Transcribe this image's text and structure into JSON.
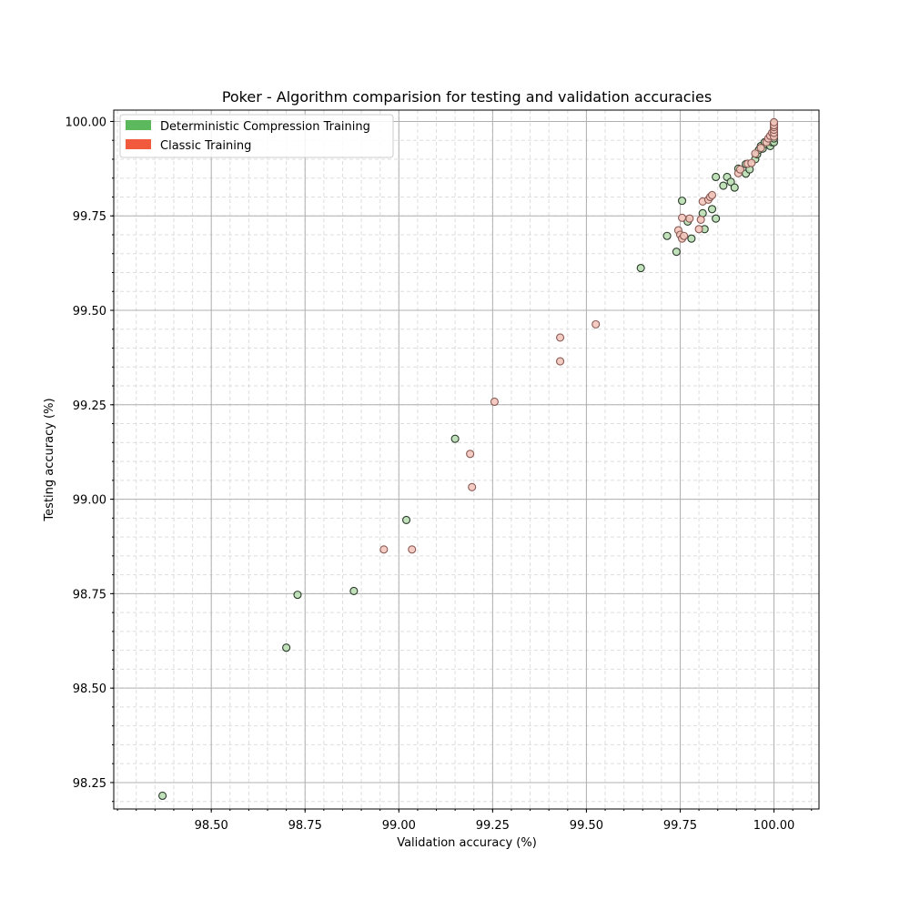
{
  "chart_data": {
    "type": "scatter",
    "title": "Poker - Algorithm comparision for testing and validation accuracies",
    "xlabel": "Validation accuracy (%)",
    "ylabel": "Testing accuracy (%)",
    "xlim": [
      98.24,
      100.12
    ],
    "ylim": [
      98.18,
      100.03
    ],
    "x_ticks": [
      98.5,
      98.75,
      99.0,
      99.25,
      99.5,
      99.75,
      100.0
    ],
    "x_tick_labels": [
      "98.50",
      "98.75",
      "99.00",
      "99.25",
      "99.50",
      "99.75",
      "100.00"
    ],
    "y_ticks": [
      98.25,
      98.5,
      98.75,
      99.0,
      99.25,
      99.5,
      99.75,
      100.0
    ],
    "y_tick_labels": [
      "98.25",
      "98.50",
      "98.75",
      "99.00",
      "99.25",
      "99.50",
      "99.75",
      "100.00"
    ],
    "grid": true,
    "minor_grid": true,
    "legend_position": "top-left",
    "series": [
      {
        "name": "Deterministic Compression Training",
        "color": "#5cb85c",
        "fill": "#b9deb2",
        "edge": "#2a3a2a",
        "points": [
          [
            98.37,
            98.215
          ],
          [
            98.7,
            98.607
          ],
          [
            98.73,
            98.747
          ],
          [
            98.88,
            98.757
          ],
          [
            99.02,
            98.945
          ],
          [
            99.15,
            99.16
          ],
          [
            99.645,
            99.612
          ],
          [
            99.74,
            99.655
          ],
          [
            99.715,
            99.697
          ],
          [
            99.78,
            99.69
          ],
          [
            99.77,
            99.735
          ],
          [
            99.755,
            99.79
          ],
          [
            99.81,
            99.757
          ],
          [
            99.815,
            99.715
          ],
          [
            99.835,
            99.768
          ],
          [
            99.845,
            99.743
          ],
          [
            99.845,
            99.853
          ],
          [
            99.865,
            99.83
          ],
          [
            99.875,
            99.853
          ],
          [
            99.885,
            99.84
          ],
          [
            99.895,
            99.825
          ],
          [
            99.905,
            99.875
          ],
          [
            99.925,
            99.887
          ],
          [
            99.925,
            99.862
          ],
          [
            99.935,
            99.873
          ],
          [
            99.95,
            99.9
          ],
          [
            99.955,
            99.913
          ],
          [
            99.96,
            99.925
          ],
          [
            99.965,
            99.935
          ],
          [
            99.97,
            99.928
          ],
          [
            99.975,
            99.945
          ],
          [
            99.98,
            99.94
          ],
          [
            99.99,
            99.935
          ],
          [
            99.995,
            99.945
          ],
          [
            100.0,
            99.945
          ],
          [
            100.0,
            99.955
          ],
          [
            100.0,
            99.965
          ],
          [
            100.0,
            99.975
          ],
          [
            100.0,
            99.985
          ],
          [
            100.0,
            99.995
          ]
        ]
      },
      {
        "name": "Classic Training",
        "color": "#f25a3e",
        "fill": "#f3c6bc",
        "edge": "#8a5a55",
        "points": [
          [
            98.96,
            98.867
          ],
          [
            99.035,
            98.867
          ],
          [
            99.195,
            99.032
          ],
          [
            99.19,
            99.12
          ],
          [
            99.255,
            99.258
          ],
          [
            99.43,
            99.365
          ],
          [
            99.43,
            99.428
          ],
          [
            99.525,
            99.463
          ],
          [
            99.745,
            99.712
          ],
          [
            99.75,
            99.7
          ],
          [
            99.755,
            99.69
          ],
          [
            99.76,
            99.697
          ],
          [
            99.755,
            99.745
          ],
          [
            99.775,
            99.743
          ],
          [
            99.8,
            99.715
          ],
          [
            99.805,
            99.74
          ],
          [
            99.81,
            99.788
          ],
          [
            99.825,
            99.793
          ],
          [
            99.83,
            99.8
          ],
          [
            99.835,
            99.805
          ],
          [
            99.905,
            99.863
          ],
          [
            99.91,
            99.873
          ],
          [
            99.93,
            99.888
          ],
          [
            99.94,
            99.89
          ],
          [
            99.95,
            99.915
          ],
          [
            99.965,
            99.93
          ],
          [
            99.98,
            99.945
          ],
          [
            99.985,
            99.955
          ],
          [
            99.99,
            99.962
          ],
          [
            99.995,
            99.97
          ],
          [
            100.0,
            99.96
          ],
          [
            100.0,
            99.97
          ],
          [
            100.0,
            99.978
          ],
          [
            100.0,
            99.985
          ],
          [
            100.0,
            99.99
          ],
          [
            100.0,
            99.998
          ]
        ]
      }
    ]
  }
}
